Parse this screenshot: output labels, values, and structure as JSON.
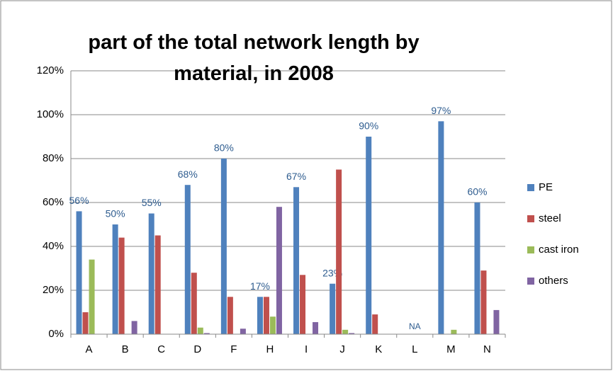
{
  "chart_data": {
    "type": "bar",
    "title": "part of the total network length by material, in 2008",
    "categories": [
      "A",
      "B",
      "C",
      "D",
      "F",
      "H",
      "I",
      "J",
      "K",
      "L",
      "M",
      "N"
    ],
    "series": [
      {
        "name": "PE",
        "color": "#4f81bd",
        "values": [
          56,
          50,
          55,
          68,
          80,
          17,
          67,
          23,
          90,
          null,
          97,
          60
        ],
        "value_labels": [
          "56%",
          "50%",
          "55%",
          "68%",
          "80%",
          "17%",
          "67%",
          "23%",
          "90%",
          "NA",
          "97%",
          "60%"
        ]
      },
      {
        "name": "steel",
        "color": "#c0504d",
        "values": [
          10,
          44,
          45,
          28,
          17,
          17,
          27,
          75,
          9,
          null,
          0,
          29
        ]
      },
      {
        "name": "cast iron",
        "color": "#9bbb59",
        "values": [
          34,
          0,
          0,
          3,
          0,
          8,
          0,
          2,
          0,
          null,
          2,
          0
        ]
      },
      {
        "name": "others",
        "color": "#8064a2",
        "values": [
          0,
          6,
          0,
          0.5,
          2.5,
          58,
          5.5,
          0.5,
          0,
          null,
          0,
          11
        ]
      }
    ],
    "ylim": [
      0,
      120
    ],
    "yticks": [
      {
        "value": 0,
        "label": "0%"
      },
      {
        "value": 20,
        "label": "20%"
      },
      {
        "value": 40,
        "label": "40%"
      },
      {
        "value": 60,
        "label": "60%"
      },
      {
        "value": 80,
        "label": "80%"
      },
      {
        "value": 100,
        "label": "100%"
      },
      {
        "value": 120,
        "label": "120%"
      }
    ],
    "grid": true,
    "legend": "right"
  }
}
